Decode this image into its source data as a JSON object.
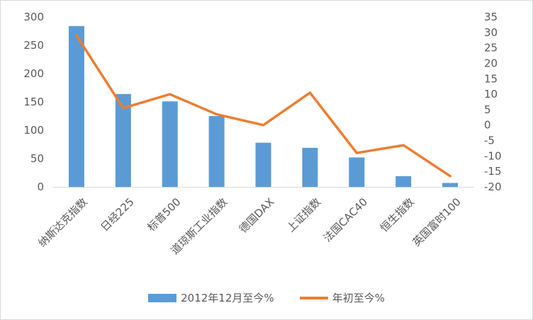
{
  "chart_data": {
    "type": "bar",
    "categories": [
      "纳斯达克指数",
      "日经225",
      "标普500",
      "道琼斯工业指数",
      "德国DAX",
      "上证指数",
      "法国CAC40",
      "恒生指数",
      "英国富时100"
    ],
    "series": [
      {
        "name": "2012年12月至今%",
        "type": "bar",
        "axis": "left",
        "color": "#5b9bd5",
        "values": [
          284,
          164,
          151,
          125,
          78,
          69,
          52,
          19,
          7
        ]
      },
      {
        "name": "年初至今%",
        "type": "line",
        "axis": "right",
        "color": "#ed7d31",
        "values": [
          29,
          5.5,
          10,
          3.5,
          0,
          10.5,
          -9,
          -6.5,
          -16.5
        ]
      }
    ],
    "y_left": {
      "min": 0,
      "max": 300,
      "step": 50,
      "ticks": [
        "0",
        "50",
        "100",
        "150",
        "200",
        "250",
        "300"
      ]
    },
    "y_right": {
      "min": -20,
      "max": 35,
      "step": 5,
      "ticks": [
        "-20",
        "-15",
        "-10",
        "-5",
        "0",
        "5",
        "10",
        "15",
        "20",
        "25",
        "30",
        "35"
      ]
    },
    "grid": false,
    "legend": "bottom"
  }
}
